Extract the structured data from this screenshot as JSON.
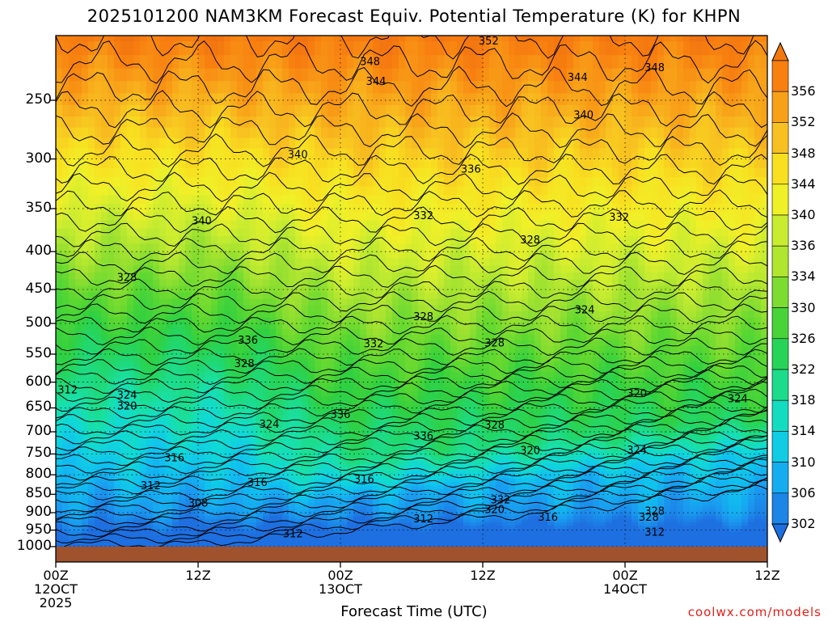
{
  "title": "2025101200 NAM3KM Forecast Equiv. Potential Temperature (K) for KHPN",
  "credit": "coolwx.com/models",
  "chart_data": {
    "type": "heatmap",
    "title": "2025101200 NAM3KM Forecast Equiv. Potential Temperature (K) for KHPN",
    "xlabel": "Forecast Time (UTC)",
    "ylabel": "",
    "x_ticks": [
      {
        "hour": 0,
        "lines": [
          "00Z",
          "12OCT",
          "2025"
        ]
      },
      {
        "hour": 12,
        "lines": [
          "12Z"
        ]
      },
      {
        "hour": 24,
        "lines": [
          "00Z",
          "13OCT"
        ]
      },
      {
        "hour": 36,
        "lines": [
          "12Z"
        ]
      },
      {
        "hour": 48,
        "lines": [
          "00Z",
          "14OCT"
        ]
      },
      {
        "hour": 60,
        "lines": [
          "12Z"
        ]
      }
    ],
    "xlim": [
      0,
      60
    ],
    "y_ticks": [
      250,
      300,
      350,
      400,
      450,
      500,
      550,
      600,
      650,
      700,
      750,
      800,
      850,
      900,
      950,
      1000
    ],
    "ylim": [
      1000,
      200
    ],
    "y_scale": "log-pressure",
    "grid": true,
    "colorbar": {
      "labels": [
        356,
        352,
        348,
        344,
        340,
        336,
        334,
        330,
        326,
        322,
        318,
        314,
        310,
        306,
        302
      ],
      "min": 300,
      "max": 358
    },
    "contour_labels": [
      {
        "value": "352",
        "hour": 36.5,
        "p": 208
      },
      {
        "value": "348",
        "hour": 26.5,
        "p": 222
      },
      {
        "value": "348",
        "hour": 50.5,
        "p": 226
      },
      {
        "value": "344",
        "hour": 27,
        "p": 236
      },
      {
        "value": "344",
        "hour": 44,
        "p": 233
      },
      {
        "value": "340",
        "hour": 44.5,
        "p": 262
      },
      {
        "value": "340",
        "hour": 20.4,
        "p": 296
      },
      {
        "value": "336",
        "hour": 35,
        "p": 310
      },
      {
        "value": "340",
        "hour": 12.3,
        "p": 364
      },
      {
        "value": "332",
        "hour": 31,
        "p": 358
      },
      {
        "value": "332",
        "hour": 47.5,
        "p": 360
      },
      {
        "value": "328",
        "hour": 40,
        "p": 386
      },
      {
        "value": "328",
        "hour": 6,
        "p": 434
      },
      {
        "value": "324",
        "hour": 44.6,
        "p": 480
      },
      {
        "value": "328",
        "hour": 31,
        "p": 490
      },
      {
        "value": "336",
        "hour": 16.2,
        "p": 527
      },
      {
        "value": "332",
        "hour": 26.8,
        "p": 533
      },
      {
        "value": "328",
        "hour": 37,
        "p": 532
      },
      {
        "value": "328",
        "hour": 15.9,
        "p": 567
      },
      {
        "value": "312",
        "hour": 1,
        "p": 615
      },
      {
        "value": "324",
        "hour": 6,
        "p": 625
      },
      {
        "value": "320",
        "hour": 6,
        "p": 647
      },
      {
        "value": "320",
        "hour": 49,
        "p": 622
      },
      {
        "value": "324",
        "hour": 57.5,
        "p": 632
      },
      {
        "value": "336",
        "hour": 24,
        "p": 664
      },
      {
        "value": "324",
        "hour": 18,
        "p": 684
      },
      {
        "value": "328",
        "hour": 37,
        "p": 686
      },
      {
        "value": "336",
        "hour": 31,
        "p": 710
      },
      {
        "value": "320",
        "hour": 40,
        "p": 743
      },
      {
        "value": "324",
        "hour": 49,
        "p": 742
      },
      {
        "value": "316",
        "hour": 10,
        "p": 760
      },
      {
        "value": "316",
        "hour": 26,
        "p": 812
      },
      {
        "value": "316",
        "hour": 17,
        "p": 820
      },
      {
        "value": "312",
        "hour": 8,
        "p": 828
      },
      {
        "value": "308",
        "hour": 12,
        "p": 874
      },
      {
        "value": "332",
        "hour": 37.5,
        "p": 866
      },
      {
        "value": "320",
        "hour": 37,
        "p": 892
      },
      {
        "value": "312",
        "hour": 31,
        "p": 918
      },
      {
        "value": "316",
        "hour": 41.5,
        "p": 914
      },
      {
        "value": "328",
        "hour": 50.5,
        "p": 896
      },
      {
        "value": "328",
        "hour": 50,
        "p": 913
      },
      {
        "value": "312",
        "hour": 20,
        "p": 962
      },
      {
        "value": "312",
        "hour": 50.5,
        "p": 957
      }
    ]
  }
}
